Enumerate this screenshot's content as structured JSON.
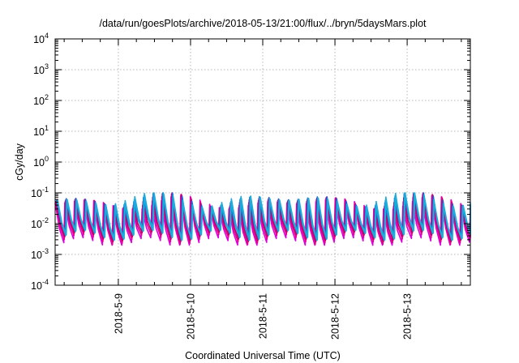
{
  "chart_data": {
    "type": "line",
    "title": "/data/run/goesPlots/archive/2018-05-13/21:00/flux/../bryn/5daysMars.plot",
    "xlabel": "Coordinated Universal Time (UTC)",
    "ylabel": "cGy/day",
    "y_scale": "log",
    "ylim": [
      0.0001,
      10000
    ],
    "y_ticks": [
      {
        "value": 0.0001,
        "base": "10",
        "exp": "-4"
      },
      {
        "value": 0.001,
        "base": "10",
        "exp": "-3"
      },
      {
        "value": 0.01,
        "base": "10",
        "exp": "-2"
      },
      {
        "value": 0.1,
        "base": "10",
        "exp": "-1"
      },
      {
        "value": 1,
        "base": "10",
        "exp": "0"
      },
      {
        "value": 10,
        "base": "10",
        "exp": "1"
      },
      {
        "value": 100,
        "base": "10",
        "exp": "2"
      },
      {
        "value": 1000,
        "base": "10",
        "exp": "3"
      },
      {
        "value": 10000,
        "base": "10",
        "exp": "4"
      }
    ],
    "xlim": [
      "2018-05-08 03:00",
      "2018-05-13 21:00"
    ],
    "x_ticks": [
      "2018-5-9",
      "2018-5-10",
      "2018-5-11",
      "2018-5-12",
      "2018-5-13"
    ],
    "grid": true,
    "series_colors": [
      "#dd00dd",
      "#e8008a",
      "#c0006a",
      "#1e5adc",
      "#00b4d8",
      "#22aadd"
    ],
    "oscillation": {
      "cycles_per_day": 7.4,
      "upper_range": [
        0.03,
        0.1
      ],
      "lower_range": [
        0.002,
        0.007
      ]
    }
  }
}
